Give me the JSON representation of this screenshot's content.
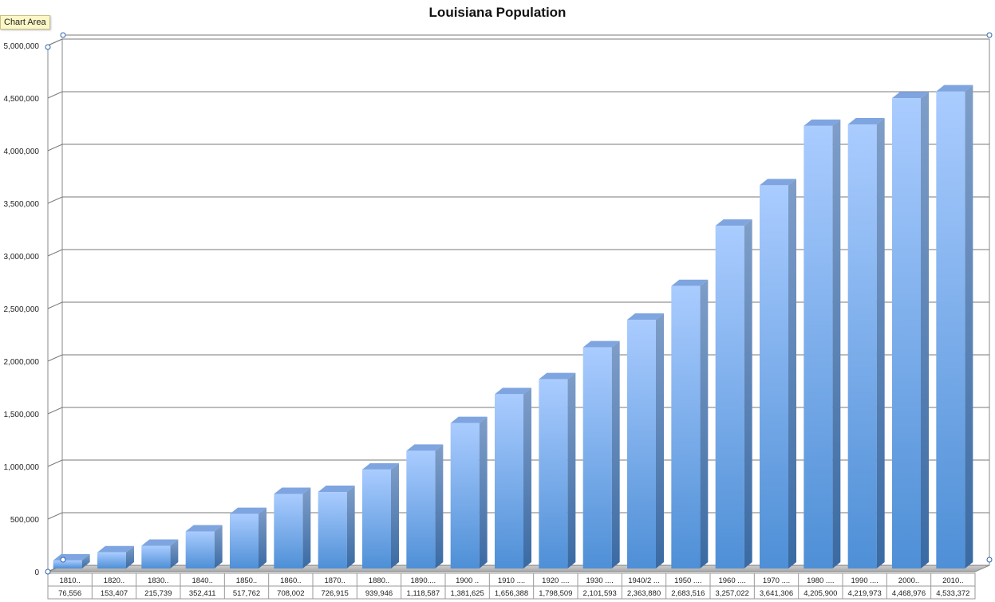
{
  "tooltip": "Chart Area",
  "chart_data": {
    "type": "bar",
    "title": "Louisiana Population",
    "xlabel": "",
    "ylabel": "",
    "ylim": [
      0,
      5000000
    ],
    "yticks": [
      0,
      500000,
      1000000,
      1500000,
      2000000,
      2500000,
      3000000,
      3500000,
      4000000,
      4500000,
      5000000
    ],
    "ytick_labels": [
      "0",
      "500,000",
      "1,000,000",
      "1,500,000",
      "2,000,000",
      "2,500,000",
      "3,000,000",
      "3,500,000",
      "4,000,000",
      "4,500,000",
      "5,000,000"
    ],
    "categories": [
      "1810..",
      "1820..",
      "1830..",
      "1840..",
      "1850..",
      "1860..",
      "1870..",
      "1880..",
      "1890....",
      "1900 ..",
      "1910 ....",
      "1920 ....",
      "1930 ....",
      "1940/2 ...",
      "1950 ....",
      "1960 ....",
      "1970 ....",
      "1980 ....",
      "1990 ....",
      "2000..",
      "2010.."
    ],
    "values": [
      76556,
      153407,
      215739,
      352411,
      517762,
      708002,
      726915,
      939946,
      1118587,
      1381625,
      1656388,
      1798509,
      2101593,
      2363880,
      2683516,
      3257022,
      3641306,
      4205900,
      4219973,
      4468976,
      4533372
    ],
    "value_labels": [
      "76,556",
      "153,407",
      "215,739",
      "352,411",
      "517,762",
      "708,002",
      "726,915",
      "939,946",
      "1,118,587",
      "1,381,625",
      "1,656,388",
      "1,798,509",
      "2,101,593",
      "2,363,880",
      "2,683,516",
      "3,257,022",
      "3,641,306",
      "4,205,900",
      "4,219,973",
      "4,468,976",
      "4,533,372"
    ],
    "grid": true,
    "legend": "none",
    "style": "3d-column",
    "colors": {
      "bar_light": "#aaccff",
      "bar_dark": "#4e8fd6",
      "bar_side": "#3d6fa8",
      "bar_top": "#7ea5e0",
      "floor": "#b8b8b8",
      "grid": "#7a7a7a"
    }
  }
}
